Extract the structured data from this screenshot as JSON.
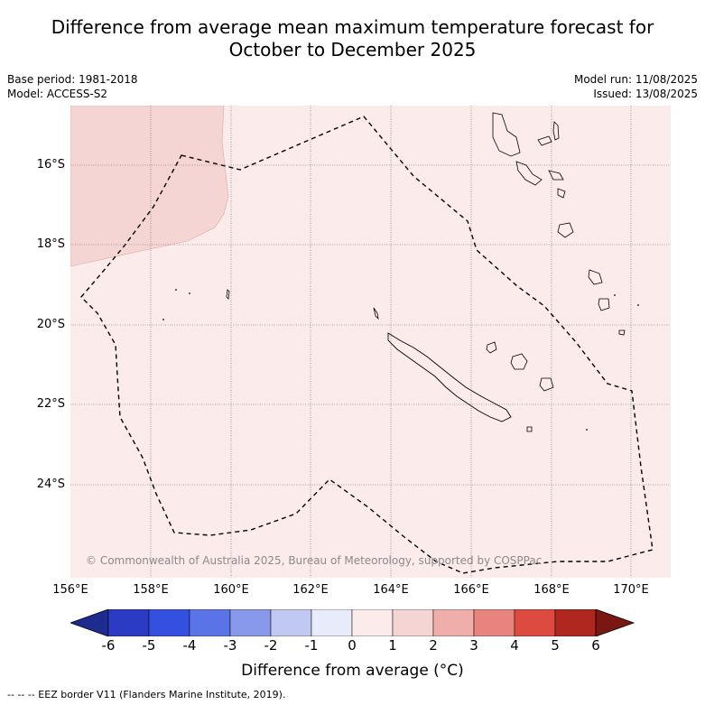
{
  "title_line1": "Difference from average mean maximum temperature forecast for",
  "title_line2": "October to December 2025",
  "base_period": "Base period: 1981-2018",
  "model": "Model: ACCESS-S2",
  "model_run": "Model run: 11/08/2025",
  "issued": "Issued: 13/08/2025",
  "copyright": "© Commonwealth of Australia 2025, Bureau of Meteorology, supported by COSPPac",
  "lat_labels": [
    "16°S",
    "18°S",
    "20°S",
    "22°S",
    "24°S"
  ],
  "lon_labels": [
    "156°E",
    "158°E",
    "160°E",
    "162°E",
    "164°E",
    "166°E",
    "168°E",
    "170°E"
  ],
  "colorbar": {
    "ticks": [
      "-6",
      "-5",
      "-4",
      "-3",
      "-2",
      "-1",
      "0",
      "1",
      "2",
      "3",
      "4",
      "5",
      "6"
    ],
    "colors": [
      "#1f2b8f",
      "#2b3bc4",
      "#3550e0",
      "#5a73e6",
      "#8898ea",
      "#c1c8f2",
      "#e8ecfa",
      "#fbebea",
      "#f5d5d3",
      "#efaeaa",
      "#e9837e",
      "#dc4a40",
      "#b0271f",
      "#7a1713"
    ],
    "label": "Difference from average (°C)"
  },
  "legend_text": "--  --  -- EEZ border V11 (Flanders Marine Institute, 2019).",
  "map_fill_color": "#fbebea",
  "anomaly_patch_color": "#f5d5d3"
}
